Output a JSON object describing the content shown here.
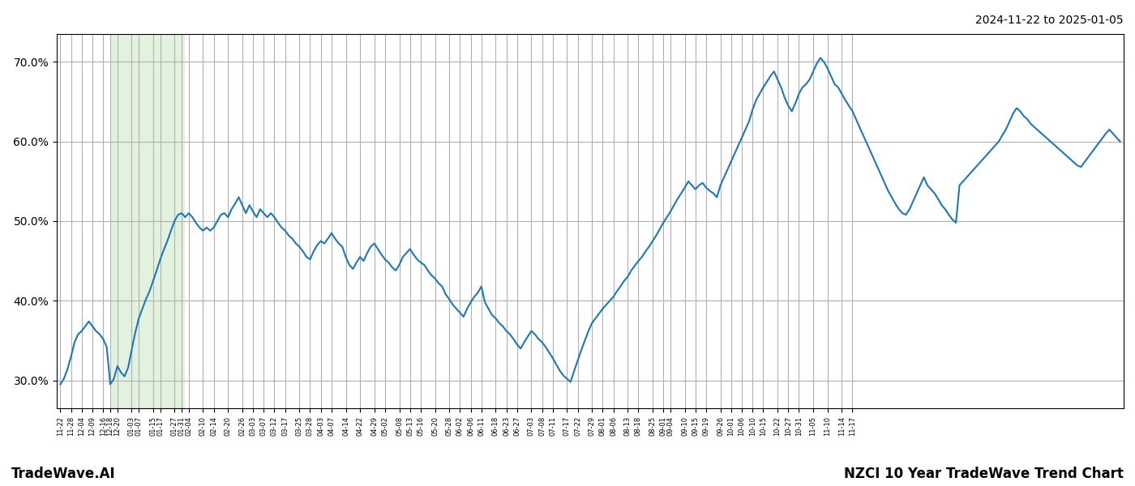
{
  "chart_data": {
    "type": "line",
    "title": "NZCI 10 Year TradeWave Trend Chart",
    "subtitle": "2024-11-22 to 2025-01-05",
    "annotations": [
      "TradeWave.AI"
    ],
    "color": "#1f77b4",
    "grid": true,
    "ylim": [
      0.265,
      0.735
    ],
    "yticks": [
      {
        "value": 0.3,
        "label": "30.0%"
      },
      {
        "value": 0.4,
        "label": "40.0%"
      },
      {
        "value": 0.5,
        "label": "50.0%"
      },
      {
        "value": 0.6,
        "label": "60.0%"
      },
      {
        "value": 0.7,
        "label": "70.0%"
      }
    ],
    "shaded_region": {
      "start": 14,
      "end": 35,
      "color": "#c8e6c0"
    },
    "categories": [
      "11-22",
      null,
      null,
      "11-28",
      null,
      null,
      "12-04",
      null,
      null,
      "12-09",
      null,
      null,
      "12-16",
      null,
      "12-18",
      null,
      "12-20",
      null,
      null,
      null,
      "01-03",
      null,
      "01-07",
      null,
      null,
      null,
      "01-15",
      null,
      "01-17",
      null,
      null,
      null,
      "01-27",
      null,
      "01-31",
      null,
      "02-04",
      null,
      null,
      null,
      "02-10",
      null,
      null,
      "02-14",
      null,
      null,
      null,
      "02-20",
      null,
      null,
      null,
      "02-26",
      null,
      null,
      "03-03",
      null,
      null,
      "03-07",
      null,
      null,
      "03-12",
      null,
      null,
      "03-17",
      null,
      null,
      null,
      "03-25",
      null,
      null,
      "03-28",
      null,
      null,
      "04-03",
      null,
      null,
      "04-07",
      null,
      null,
      null,
      "04-14",
      null,
      null,
      null,
      "04-22",
      null,
      null,
      null,
      "04-29",
      null,
      null,
      "05-02",
      null,
      null,
      null,
      "05-08",
      null,
      null,
      "05-13",
      null,
      null,
      "05-16",
      null,
      null,
      null,
      "05-20",
      null,
      null,
      null,
      "05-28",
      null,
      null,
      "06-02",
      null,
      null,
      "06-06",
      null,
      null,
      "06-11",
      null,
      null,
      null,
      "06-18",
      null,
      null,
      "06-23",
      null,
      null,
      "06-27",
      null,
      null,
      null,
      "07-03",
      null,
      null,
      "07-08",
      null,
      null,
      "07-11",
      null,
      null,
      null,
      "07-17",
      null,
      null,
      "07-22",
      null,
      null,
      null,
      "07-29",
      null,
      null,
      "08-01",
      null,
      null,
      "08-06",
      null,
      null,
      null,
      "08-13",
      null,
      null,
      "08-18",
      null,
      null,
      null,
      "08-25",
      null,
      null,
      "09-01",
      null,
      "09-04",
      null,
      null,
      null,
      "09-10",
      null,
      null,
      "09-15",
      null,
      null,
      "09-19",
      null,
      null,
      null,
      "09-26",
      null,
      null,
      "10-01",
      null,
      null,
      "10-06",
      null,
      null,
      "10-10",
      null,
      null,
      "10-15",
      null,
      null,
      null,
      "10-22",
      null,
      null,
      "10-27",
      null,
      null,
      "10-31",
      null,
      null,
      null,
      "11-05",
      null,
      null,
      null,
      "11-10",
      null,
      null,
      null,
      "11-14",
      null,
      null,
      "11-17",
      null,
      null,
      null,
      null,
      null,
      null,
      null,
      null,
      null,
      null,
      null,
      null,
      null,
      null,
      null,
      null,
      null,
      null,
      null,
      null,
      null,
      null,
      null,
      null,
      null,
      null,
      null,
      null,
      null,
      null,
      null,
      null,
      null,
      null,
      null,
      null,
      null,
      null,
      null,
      null,
      null,
      null,
      null,
      null,
      null,
      null,
      null,
      null,
      null,
      null,
      null,
      null,
      null,
      null,
      null,
      null,
      null,
      null,
      null,
      null,
      null,
      null,
      null,
      null,
      null,
      null,
      null,
      null,
      null,
      null,
      null,
      null,
      null,
      null,
      null
    ],
    "values": [
      0.295,
      0.302,
      0.314,
      0.33,
      0.348,
      0.358,
      0.362,
      0.368,
      0.374,
      0.368,
      0.362,
      0.358,
      0.352,
      0.342,
      0.295,
      0.302,
      0.318,
      0.31,
      0.305,
      0.316,
      0.338,
      0.36,
      0.378,
      0.39,
      0.402,
      0.412,
      0.425,
      0.438,
      0.452,
      0.464,
      0.475,
      0.488,
      0.5,
      0.508,
      0.51,
      0.505,
      0.51,
      0.505,
      0.498,
      0.492,
      0.488,
      0.492,
      0.488,
      0.492,
      0.5,
      0.508,
      0.51,
      0.505,
      0.515,
      0.522,
      0.53,
      0.52,
      0.51,
      0.52,
      0.512,
      0.505,
      0.515,
      0.51,
      0.505,
      0.51,
      0.505,
      0.498,
      0.492,
      0.488,
      0.482,
      0.478,
      0.472,
      0.468,
      0.462,
      0.455,
      0.452,
      0.462,
      0.47,
      0.475,
      0.472,
      0.478,
      0.485,
      0.478,
      0.472,
      0.468,
      0.455,
      0.445,
      0.44,
      0.448,
      0.455,
      0.45,
      0.46,
      0.468,
      0.472,
      0.465,
      0.458,
      0.452,
      0.448,
      0.442,
      0.438,
      0.445,
      0.455,
      0.46,
      0.465,
      0.458,
      0.452,
      0.448,
      0.445,
      0.438,
      0.432,
      0.428,
      0.422,
      0.418,
      0.408,
      0.402,
      0.395,
      0.39,
      0.385,
      0.38,
      0.39,
      0.398,
      0.405,
      0.41,
      0.418,
      0.398,
      0.39,
      0.382,
      0.378,
      0.372,
      0.368,
      0.362,
      0.358,
      0.352,
      0.345,
      0.34,
      0.348,
      0.355,
      0.362,
      0.358,
      0.352,
      0.348,
      0.342,
      0.335,
      0.328,
      0.32,
      0.312,
      0.306,
      0.302,
      0.298,
      0.312,
      0.325,
      0.338,
      0.35,
      0.362,
      0.372,
      0.378,
      0.384,
      0.39,
      0.395,
      0.4,
      0.405,
      0.412,
      0.418,
      0.425,
      0.43,
      0.438,
      0.444,
      0.45,
      0.455,
      0.462,
      0.468,
      0.475,
      0.482,
      0.49,
      0.498,
      0.505,
      0.512,
      0.52,
      0.528,
      0.535,
      0.542,
      0.55,
      0.545,
      0.54,
      0.545,
      0.548,
      0.542,
      0.538,
      0.535,
      0.53,
      0.545,
      0.555,
      0.565,
      0.575,
      0.585,
      0.595,
      0.605,
      0.615,
      0.625,
      0.64,
      0.652,
      0.66,
      0.668,
      0.675,
      0.682,
      0.688,
      0.678,
      0.668,
      0.655,
      0.645,
      0.638,
      0.648,
      0.66,
      0.668,
      0.672,
      0.678,
      0.688,
      0.698,
      0.705,
      0.7,
      0.692,
      0.682,
      0.672,
      0.668,
      0.66,
      0.652,
      0.645,
      0.638,
      0.628,
      0.618,
      0.608,
      0.598,
      0.588,
      0.578,
      0.568,
      0.558,
      0.548,
      0.538,
      0.53,
      0.522,
      0.515,
      0.51,
      0.508,
      0.515,
      0.525,
      0.535,
      0.545,
      0.555,
      0.545,
      0.54,
      0.535,
      0.528,
      0.52,
      0.515,
      0.508,
      0.502,
      0.498,
      0.545,
      0.55,
      0.555,
      0.56,
      0.565,
      0.57,
      0.575,
      0.58,
      0.585,
      0.59,
      0.595,
      0.6,
      0.608,
      0.615,
      0.625,
      0.635,
      0.642,
      0.638,
      0.632,
      0.628,
      0.622,
      0.618,
      0.614,
      0.61,
      0.606,
      0.602,
      0.598,
      0.594,
      0.59,
      0.586,
      0.582,
      0.578,
      0.574,
      0.57,
      0.568,
      0.574,
      0.58,
      0.586,
      0.592,
      0.598,
      0.604,
      0.61,
      0.615,
      0.61,
      0.605,
      0.6
    ]
  }
}
